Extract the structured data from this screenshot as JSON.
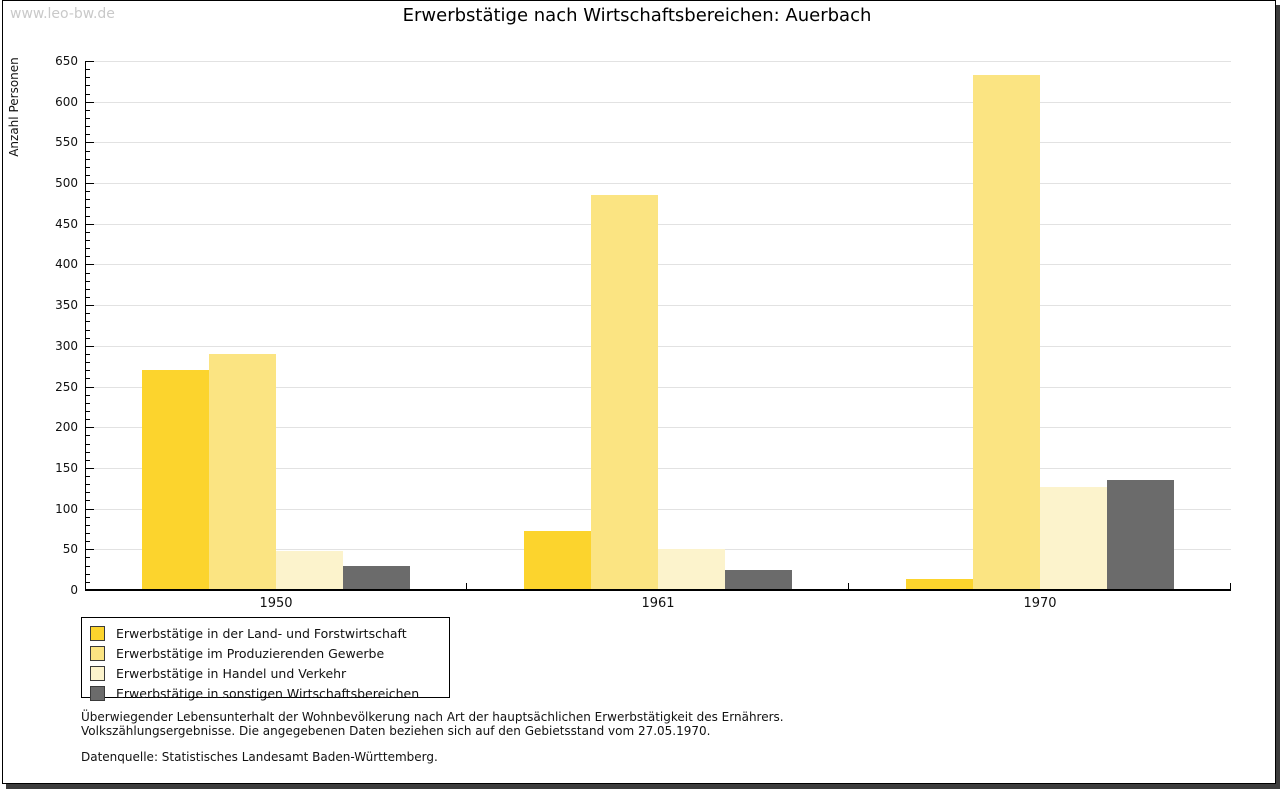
{
  "page": {
    "watermark": "www.leo-bw.de"
  },
  "chart_data": {
    "type": "bar",
    "title": "Erwerbstätige nach Wirtschaftsbereichen: Auerbach",
    "ylabel": "Anzahl Personen",
    "xlabel": "",
    "ylim": [
      0,
      650
    ],
    "ytick_step": 50,
    "yminor_step": 10,
    "grid": true,
    "legend_position": "bottom-left",
    "categories": [
      "1950",
      "1961",
      "1970"
    ],
    "series": [
      {
        "name": "Erwerbstätige in der Land- und Forstwirtschaft",
        "color": "#fcd42d",
        "values": [
          270,
          73,
          13
        ]
      },
      {
        "name": "Erwerbstätige im Produzierenden Gewerbe",
        "color": "#fbe482",
        "values": [
          290,
          485,
          633
        ]
      },
      {
        "name": "Erwerbstätige in Handel und Verkehr",
        "color": "#fcf3cc",
        "values": [
          48,
          50,
          127
        ]
      },
      {
        "name": "Erwerbstätige in sonstigen Wirtschaftsbereichen",
        "color": "#6b6b6b",
        "values": [
          30,
          25,
          135
        ]
      }
    ]
  },
  "footnotes": {
    "line1": "Überwiegender Lebensunterhalt der Wohnbevölkerung nach Art der hauptsächlichen Erwerbstätigkeit des Ernährers.",
    "line2": "Volkszählungsergebnisse. Die angegebenen Daten beziehen sich auf den Gebietsstand vom 27.05.1970.",
    "source": "Datenquelle: Statistisches Landesamt Baden-Württemberg."
  }
}
